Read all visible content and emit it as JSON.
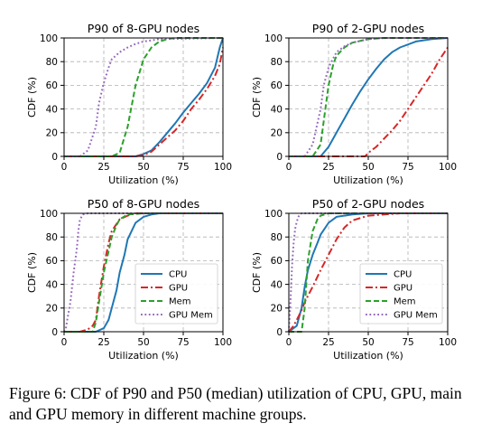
{
  "caption": "Figure 6: CDF of P90 and P50 (median) utilization of CPU, GPU, main and GPU memory in different machine groups.",
  "colors": {
    "CPU": "#1f77b4",
    "GPU": "#d62728",
    "Mem": "#2ca02c",
    "GPU Mem": "#9467bd"
  },
  "chart_data": [
    {
      "type": "line",
      "title": "P90 of 8-GPU nodes",
      "xlabel": "Utilization (%)",
      "ylabel": "CDF (%)",
      "xlim": [
        0,
        100
      ],
      "ylim": [
        0,
        100
      ],
      "xticks": [
        0,
        25,
        50,
        75,
        100
      ],
      "yticks": [
        0,
        20,
        40,
        60,
        80,
        100
      ],
      "grid": true,
      "legend": null,
      "series": [
        {
          "name": "CPU",
          "style": "solid",
          "x": [
            0,
            40,
            45,
            50,
            55,
            60,
            65,
            70,
            75,
            80,
            85,
            90,
            95,
            98,
            100
          ],
          "y": [
            0,
            0,
            0,
            2,
            5,
            12,
            20,
            28,
            37,
            45,
            53,
            62,
            75,
            92,
            100
          ]
        },
        {
          "name": "GPU",
          "style": "dashdot",
          "x": [
            0,
            40,
            45,
            50,
            55,
            60,
            65,
            70,
            75,
            80,
            85,
            90,
            95,
            98,
            100
          ],
          "y": [
            0,
            0,
            0,
            1,
            4,
            10,
            16,
            22,
            30,
            40,
            48,
            57,
            68,
            78,
            92
          ]
        },
        {
          "name": "Mem",
          "style": "dashed",
          "x": [
            0,
            30,
            35,
            40,
            45,
            50,
            55,
            60,
            65,
            70,
            100
          ],
          "y": [
            0,
            0,
            3,
            25,
            60,
            82,
            92,
            97,
            99,
            100,
            100
          ]
        },
        {
          "name": "GPU Mem",
          "style": "dotted",
          "x": [
            0,
            10,
            15,
            20,
            22,
            25,
            28,
            30,
            35,
            40,
            45,
            50,
            60,
            100
          ],
          "y": [
            0,
            0,
            5,
            25,
            45,
            62,
            75,
            82,
            88,
            92,
            95,
            97,
            99,
            100
          ]
        }
      ]
    },
    {
      "type": "line",
      "title": "P90 of 2-GPU nodes",
      "xlabel": "Utilization (%)",
      "ylabel": "CDF (%)",
      "xlim": [
        0,
        100
      ],
      "ylim": [
        0,
        100
      ],
      "xticks": [
        0,
        25,
        50,
        75,
        100
      ],
      "yticks": [
        0,
        20,
        40,
        60,
        80,
        100
      ],
      "grid": true,
      "legend": null,
      "series": [
        {
          "name": "CPU",
          "style": "solid",
          "x": [
            0,
            20,
            25,
            30,
            35,
            40,
            45,
            50,
            55,
            60,
            65,
            70,
            80,
            90,
            100
          ],
          "y": [
            0,
            0,
            8,
            20,
            32,
            44,
            55,
            65,
            74,
            82,
            88,
            92,
            97,
            99,
            100
          ]
        },
        {
          "name": "GPU",
          "style": "dashdot",
          "x": [
            0,
            48,
            50,
            55,
            60,
            65,
            70,
            75,
            80,
            85,
            90,
            95,
            100
          ],
          "y": [
            0,
            0,
            3,
            8,
            15,
            22,
            30,
            40,
            50,
            60,
            70,
            82,
            92
          ]
        },
        {
          "name": "Mem",
          "style": "dashed",
          "x": [
            0,
            15,
            20,
            22,
            25,
            28,
            30,
            35,
            40,
            50,
            60,
            100
          ],
          "y": [
            0,
            0,
            10,
            30,
            60,
            78,
            85,
            92,
            96,
            99,
            100,
            100
          ]
        },
        {
          "name": "GPU Mem",
          "style": "dotted",
          "x": [
            0,
            10,
            15,
            20,
            22,
            25,
            28,
            30,
            35,
            40,
            50,
            60,
            100
          ],
          "y": [
            0,
            0,
            10,
            40,
            60,
            75,
            83,
            88,
            93,
            96,
            99,
            100,
            100
          ]
        }
      ]
    },
    {
      "type": "line",
      "title": "P50 of 8-GPU nodes",
      "xlabel": "Utilization (%)",
      "ylabel": "CDF (%)",
      "xlim": [
        0,
        100
      ],
      "ylim": [
        0,
        100
      ],
      "xticks": [
        0,
        25,
        50,
        75,
        100
      ],
      "yticks": [
        0,
        20,
        40,
        60,
        80,
        100
      ],
      "grid": true,
      "legend": "center-right",
      "series": [
        {
          "name": "CPU",
          "style": "solid",
          "x": [
            0,
            20,
            25,
            28,
            30,
            33,
            35,
            38,
            40,
            45,
            50,
            55,
            60,
            100
          ],
          "y": [
            0,
            0,
            3,
            10,
            20,
            35,
            50,
            65,
            78,
            92,
            97,
            99,
            100,
            100
          ]
        },
        {
          "name": "GPU",
          "style": "dashdot",
          "x": [
            0,
            10,
            15,
            18,
            20,
            22,
            25,
            28,
            30,
            35,
            40,
            45,
            50,
            100
          ],
          "y": [
            0,
            0,
            2,
            5,
            10,
            30,
            55,
            75,
            85,
            95,
            98,
            100,
            100,
            100
          ]
        },
        {
          "name": "Mem",
          "style": "dashed",
          "x": [
            0,
            18,
            20,
            22,
            25,
            28,
            30,
            33,
            35,
            40,
            50,
            100
          ],
          "y": [
            0,
            0,
            8,
            25,
            50,
            68,
            80,
            90,
            95,
            99,
            100,
            100
          ]
        },
        {
          "name": "GPU Mem",
          "style": "dotted",
          "x": [
            0,
            1,
            2,
            4,
            6,
            8,
            9,
            10,
            12,
            15,
            100
          ],
          "y": [
            0,
            2,
            10,
            25,
            50,
            70,
            85,
            95,
            99,
            100,
            100
          ]
        }
      ]
    },
    {
      "type": "line",
      "title": "P50 of 2-GPU nodes",
      "xlabel": "Utilization (%)",
      "ylabel": "CDF (%)",
      "xlim": [
        0,
        100
      ],
      "ylim": [
        0,
        100
      ],
      "xticks": [
        0,
        25,
        50,
        75,
        100
      ],
      "yticks": [
        0,
        20,
        40,
        60,
        80,
        100
      ],
      "grid": true,
      "legend": "center-right",
      "series": [
        {
          "name": "CPU",
          "style": "solid",
          "x": [
            0,
            5,
            8,
            10,
            12,
            15,
            18,
            20,
            25,
            30,
            40,
            50,
            100
          ],
          "y": [
            0,
            5,
            20,
            38,
            52,
            65,
            75,
            82,
            92,
            97,
            99,
            100,
            100
          ]
        },
        {
          "name": "GPU",
          "style": "dashdot",
          "x": [
            0,
            3,
            5,
            8,
            10,
            15,
            20,
            25,
            30,
            35,
            40,
            50,
            60,
            70,
            100
          ],
          "y": [
            0,
            5,
            10,
            18,
            25,
            38,
            52,
            65,
            78,
            88,
            94,
            98,
            99,
            100,
            100
          ]
        },
        {
          "name": "Mem",
          "style": "dashed",
          "x": [
            0,
            8,
            10,
            12,
            15,
            18,
            20,
            25,
            30,
            40,
            100
          ],
          "y": [
            0,
            0,
            20,
            60,
            85,
            95,
            98,
            100,
            100,
            100,
            100
          ]
        },
        {
          "name": "GPU Mem",
          "style": "dotted",
          "x": [
            0,
            1,
            2,
            3,
            4,
            5,
            6,
            7,
            8,
            10,
            100
          ],
          "y": [
            0,
            25,
            55,
            75,
            87,
            93,
            97,
            99,
            100,
            100,
            100
          ]
        }
      ]
    }
  ]
}
